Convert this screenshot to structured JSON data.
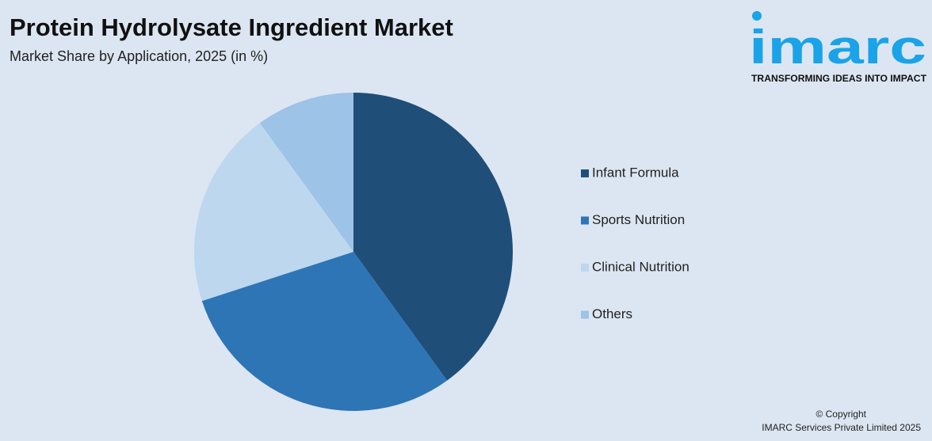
{
  "chart_data": {
    "type": "pie",
    "title": "Protein Hydrolysate Ingredient Market",
    "subtitle": "Market Share by Application, 2025 (in %)",
    "categories": [
      "Infant Formula",
      "Sports Nutrition",
      "Clinical Nutrition",
      "Others"
    ],
    "values": [
      40,
      30,
      20,
      10
    ],
    "colors": [
      "#1f4e79",
      "#2e75b6",
      "#bdd7ee",
      "#9dc3e6"
    ],
    "legend": "right"
  },
  "logo": {
    "name": "imarc",
    "tagline": "TRANSFORMING IDEAS INTO IMPACT"
  },
  "copyright": [
    "© Copyright",
    "IMARC Services Private Limited 2025"
  ]
}
